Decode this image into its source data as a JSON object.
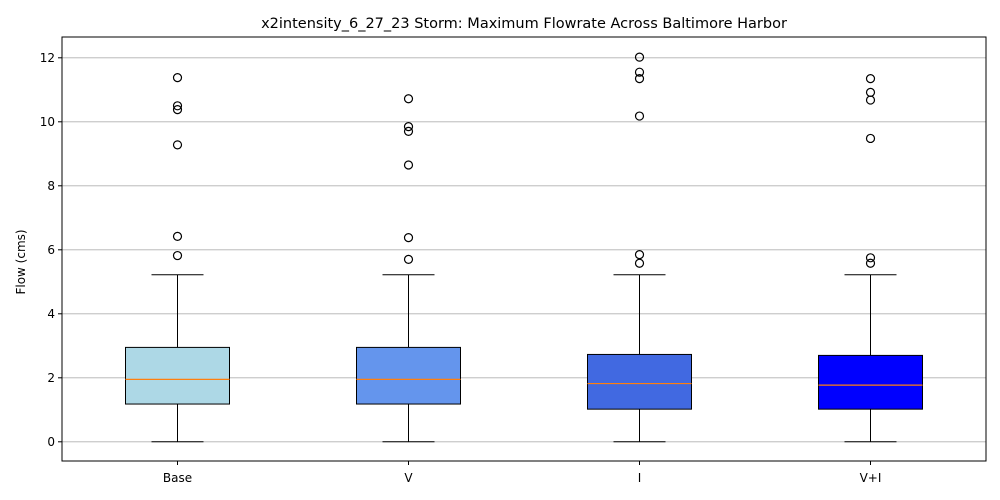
{
  "chart_data": {
    "type": "box",
    "title": "x2intensity_6_27_23 Storm: Maximum Flowrate Across Baltimore Harbor",
    "xlabel": "",
    "ylabel": "Flow (cms)",
    "ylim": [
      -0.6,
      12.65
    ],
    "yticks": [
      0,
      2,
      4,
      6,
      8,
      10,
      12
    ],
    "grid": "horizontal",
    "categories": [
      "Base",
      "V",
      "I",
      "V+I"
    ],
    "boxes": [
      {
        "label": "Base",
        "color": "#add8e6",
        "whisker_low": 0.0,
        "q1": 1.18,
        "median": 1.95,
        "q3": 2.95,
        "whisker_high": 5.22,
        "fliers": [
          5.82,
          6.42,
          9.28,
          10.38,
          10.5,
          11.38
        ]
      },
      {
        "label": "V",
        "color": "#6495ed",
        "whisker_low": 0.0,
        "q1": 1.18,
        "median": 1.95,
        "q3": 2.95,
        "whisker_high": 5.22,
        "fliers": [
          5.7,
          6.38,
          8.65,
          9.7,
          9.85,
          10.72
        ]
      },
      {
        "label": "I",
        "color": "#4169e1",
        "whisker_low": 0.0,
        "q1": 1.02,
        "median": 1.82,
        "q3": 2.73,
        "whisker_high": 5.22,
        "fliers": [
          5.58,
          5.85,
          10.18,
          11.35,
          11.55,
          12.02
        ]
      },
      {
        "label": "V+I",
        "color": "#0000ff",
        "whisker_low": 0.0,
        "q1": 1.02,
        "median": 1.77,
        "q3": 2.7,
        "whisker_high": 5.22,
        "fliers": [
          5.58,
          5.75,
          9.48,
          10.68,
          10.92,
          11.35
        ]
      }
    ]
  }
}
